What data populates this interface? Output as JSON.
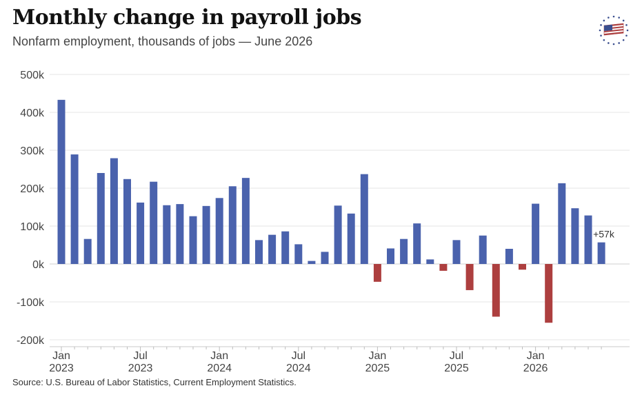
{
  "header": {
    "title": "Monthly change in payroll jobs",
    "subtitle": "Nonfarm employment, thousands of jobs — June 2026"
  },
  "footer": {
    "source": "Source: U.S. Bureau of Labor Statistics, Current Employment Statistics."
  },
  "logo": {
    "icon": "american-flag-stars-icon"
  },
  "colors": {
    "positive": "#4a62ad",
    "negative": "#ad3f3f",
    "grid": "#e6e6e6",
    "zero": "#cfcfcf"
  },
  "chart_data": {
    "type": "bar",
    "title": "Monthly change in payroll jobs",
    "subtitle": "Nonfarm employment, thousands of jobs — June 2026",
    "x_tick_labels": [
      [
        "Jan",
        "2023"
      ],
      [
        "Jul",
        "2023"
      ],
      [
        "Jan",
        "2024"
      ],
      [
        "Jul",
        "2024"
      ],
      [
        "Jan",
        "2025"
      ],
      [
        "Jul",
        "2025"
      ],
      [
        "Jan",
        "2026"
      ]
    ],
    "y_tick_labels": [
      "-200k",
      "-100k",
      "0k",
      "100k",
      "200k",
      "300k",
      "400k",
      "500k"
    ],
    "ylim": [
      -200,
      500
    ],
    "grid": true,
    "categories": [
      "Jan 2023",
      "Feb 2023",
      "Mar 2023",
      "Apr 2023",
      "May 2023",
      "Jun 2023",
      "Jul 2023",
      "Aug 2023",
      "Sep 2023",
      "Oct 2023",
      "Nov 2023",
      "Dec 2023",
      "Jan 2024",
      "Feb 2024",
      "Mar 2024",
      "Apr 2024",
      "May 2024",
      "Jun 2024",
      "Jul 2024",
      "Aug 2024",
      "Sep 2024",
      "Oct 2024",
      "Nov 2024",
      "Dec 2024",
      "Jan 2025",
      "Feb 2025",
      "Mar 2025",
      "Apr 2025",
      "May 2025",
      "Jun 2025",
      "Jul 2025",
      "Aug 2025",
      "Sep 2025",
      "Oct 2025",
      "Nov 2025",
      "Dec 2025",
      "Jan 2026",
      "Feb 2026",
      "Mar 2026",
      "Apr 2026",
      "May 2026",
      "Jun 2026"
    ],
    "values": [
      433,
      289,
      66,
      240,
      279,
      224,
      162,
      217,
      155,
      158,
      126,
      153,
      174,
      205,
      227,
      63,
      77,
      86,
      52,
      8,
      32,
      154,
      133,
      237,
      -47,
      41,
      66,
      107,
      12,
      -18,
      63,
      -69,
      75,
      -139,
      40,
      -15,
      159,
      -155,
      213,
      147,
      128,
      57
    ],
    "annotations": [
      {
        "category": "Jun 2026",
        "text": "+57k"
      }
    ]
  }
}
